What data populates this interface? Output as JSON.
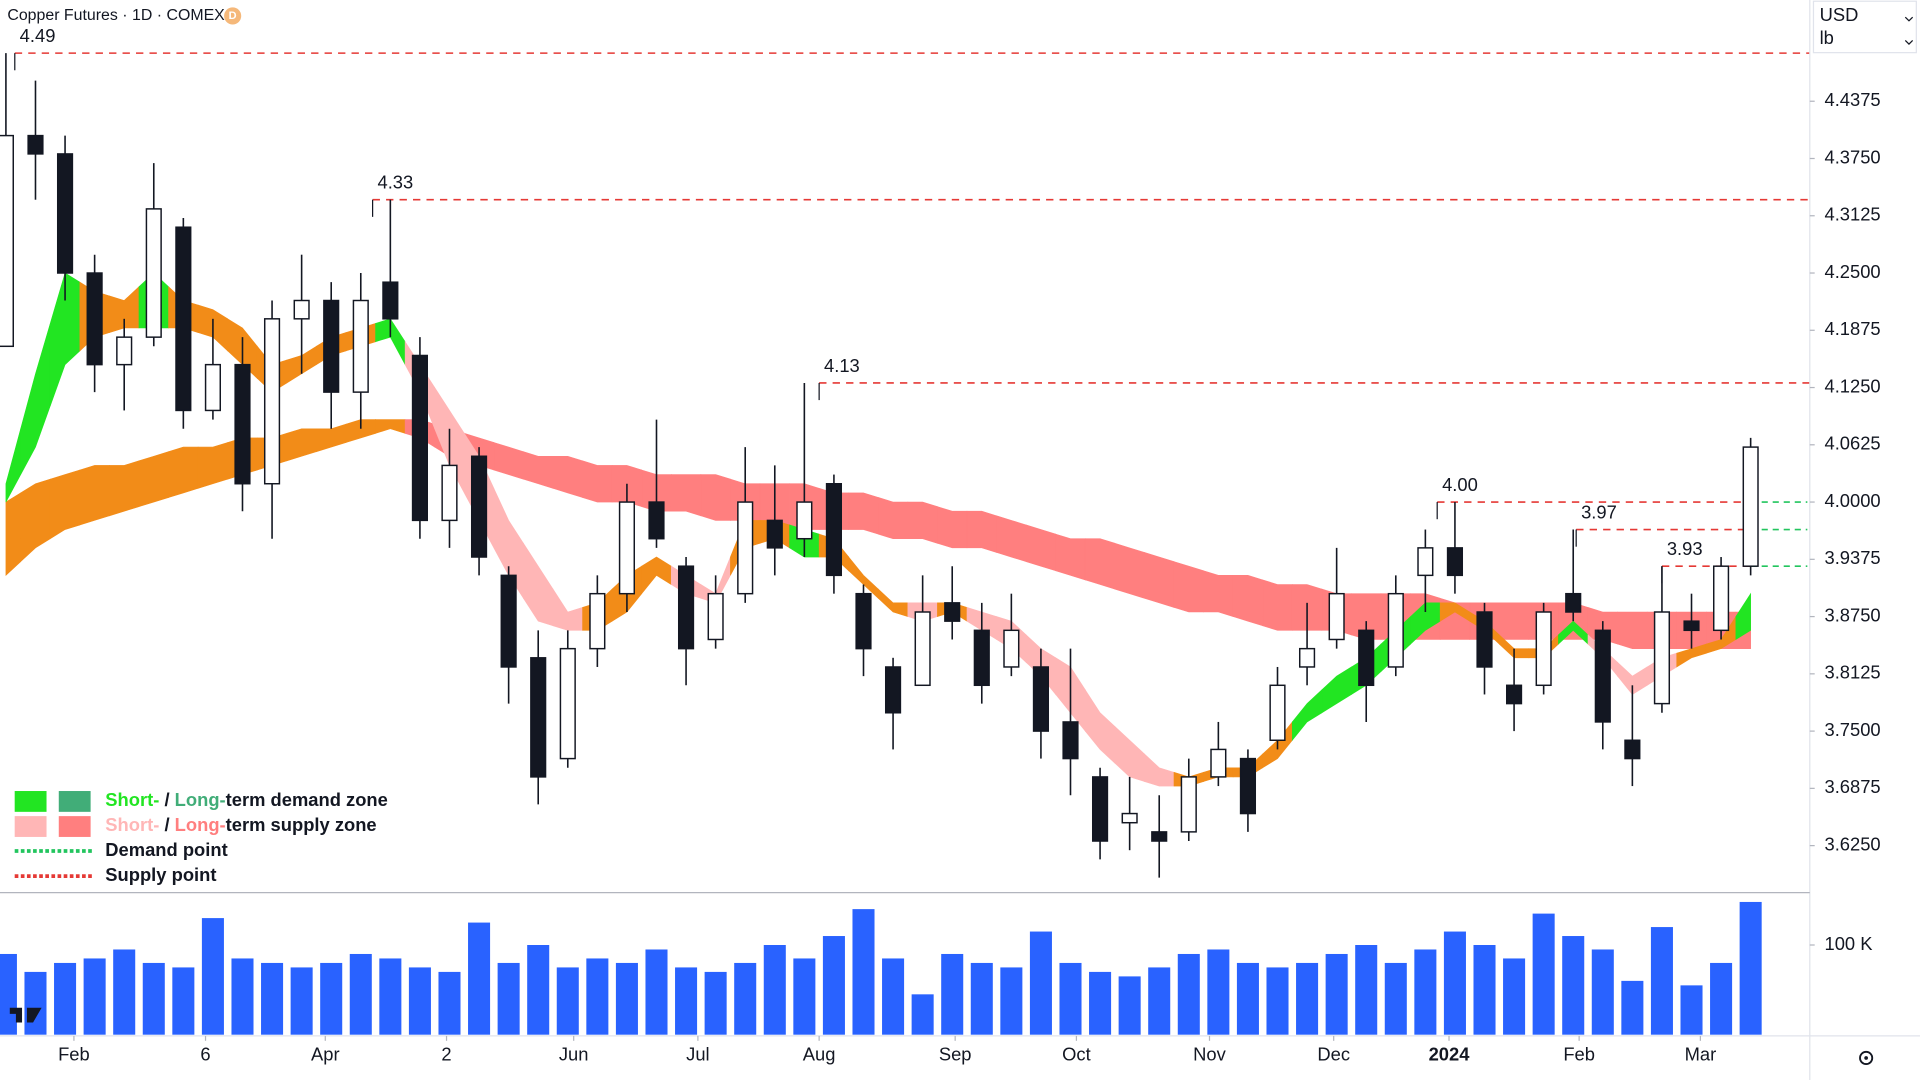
{
  "chart_data": {
    "type": "candlestick",
    "title": "Copper Futures · 1D · COMEX",
    "badge": "D",
    "currency": "USD",
    "unit": "lb",
    "xlim": [
      -0.2,
      61
    ],
    "xticks": [
      {
        "value": 2.3,
        "label": "Feb"
      },
      {
        "value": 6.75,
        "label": "6"
      },
      {
        "value": 10.8,
        "label": "Apr"
      },
      {
        "value": 14.9,
        "label": "2"
      },
      {
        "value": 19.2,
        "label": "Jun"
      },
      {
        "value": 23.4,
        "label": "Jul"
      },
      {
        "value": 27.5,
        "label": "Aug"
      },
      {
        "value": 32.1,
        "label": "Sep"
      },
      {
        "value": 36.2,
        "label": "Oct"
      },
      {
        "value": 40.7,
        "label": "Nov"
      },
      {
        "value": 44.9,
        "label": "Dec"
      },
      {
        "value": 48.8,
        "label": "2024"
      },
      {
        "value": 53.2,
        "label": "Feb"
      },
      {
        "value": 57.3,
        "label": "Mar"
      }
    ],
    "ylim": [
      3.575,
      4.548
    ],
    "yticks": [
      {
        "value": 4.4375,
        "label": "4.4375"
      },
      {
        "value": 4.375,
        "label": "4.3750"
      },
      {
        "value": 4.3125,
        "label": "4.3125"
      },
      {
        "value": 4.25,
        "label": "4.2500"
      },
      {
        "value": 4.1875,
        "label": "4.1875"
      },
      {
        "value": 4.125,
        "label": "4.1250"
      },
      {
        "value": 4.0625,
        "label": "4.0625"
      },
      {
        "value": 4,
        "label": "4.0000"
      },
      {
        "value": 3.9375,
        "label": "3.9375"
      },
      {
        "value": 3.875,
        "label": "3.8750"
      },
      {
        "value": 3.8125,
        "label": "3.8125"
      },
      {
        "value": 3.75,
        "label": "3.7500"
      },
      {
        "value": 3.6875,
        "label": "3.6875"
      },
      {
        "value": 3.625,
        "label": "3.6250"
      }
    ],
    "open": [
      4.17,
      4.4,
      4.38,
      4.25,
      4.15,
      4.18,
      4.3,
      4.1,
      4.15,
      4.02,
      4.2,
      4.22,
      4.12,
      4.24,
      4.16,
      3.98,
      4.05,
      3.92,
      3.83,
      3.72,
      3.84,
      3.9,
      4.0,
      3.93,
      3.85,
      3.9,
      3.98,
      3.96,
      4.02,
      3.9,
      3.82,
      3.8,
      3.89,
      3.86,
      3.82,
      3.82,
      3.76,
      3.7,
      3.65,
      3.64,
      3.64,
      3.7,
      3.72,
      3.74,
      3.82,
      3.85,
      3.86,
      3.82,
      3.92,
      3.95,
      3.88,
      3.8,
      3.8,
      3.9,
      3.86,
      3.74,
      3.78,
      3.87,
      3.86,
      3.93
    ],
    "high": [
      4.49,
      4.46,
      4.4,
      4.27,
      4.2,
      4.37,
      4.31,
      4.2,
      4.18,
      4.22,
      4.27,
      4.24,
      4.25,
      4.33,
      4.18,
      4.08,
      4.06,
      3.93,
      3.86,
      3.86,
      3.92,
      4.02,
      4.09,
      3.94,
      3.92,
      4.06,
      4.04,
      4.13,
      4.03,
      3.91,
      3.83,
      3.92,
      3.93,
      3.89,
      3.9,
      3.84,
      3.84,
      3.71,
      3.7,
      3.68,
      3.72,
      3.76,
      3.73,
      3.82,
      3.89,
      3.95,
      3.87,
      3.92,
      3.97,
      4.0,
      3.89,
      3.84,
      3.89,
      3.97,
      3.87,
      3.8,
      3.93,
      3.9,
      3.94,
      4.07
    ],
    "low": [
      4.17,
      4.33,
      4.22,
      4.12,
      4.1,
      4.17,
      4.08,
      4.09,
      3.99,
      3.96,
      4.14,
      4.08,
      4.08,
      4.18,
      3.96,
      3.95,
      3.92,
      3.78,
      3.67,
      3.71,
      3.82,
      3.88,
      3.95,
      3.8,
      3.84,
      3.89,
      3.92,
      3.94,
      3.9,
      3.81,
      3.73,
      3.8,
      3.85,
      3.78,
      3.81,
      3.72,
      3.68,
      3.61,
      3.62,
      3.59,
      3.63,
      3.69,
      3.64,
      3.73,
      3.8,
      3.84,
      3.76,
      3.81,
      3.88,
      3.9,
      3.79,
      3.75,
      3.79,
      3.87,
      3.73,
      3.69,
      3.77,
      3.84,
      3.85,
      3.92
    ],
    "close": [
      4.4,
      4.38,
      4.25,
      4.15,
      4.18,
      4.32,
      4.1,
      4.15,
      4.02,
      4.2,
      4.22,
      4.12,
      4.22,
      4.2,
      3.98,
      4.04,
      3.94,
      3.82,
      3.7,
      3.84,
      3.9,
      4.0,
      3.96,
      3.84,
      3.9,
      4.0,
      3.95,
      4.0,
      3.92,
      3.84,
      3.77,
      3.88,
      3.87,
      3.8,
      3.86,
      3.75,
      3.72,
      3.63,
      3.66,
      3.63,
      3.7,
      3.73,
      3.66,
      3.8,
      3.84,
      3.9,
      3.8,
      3.9,
      3.95,
      3.92,
      3.82,
      3.78,
      3.88,
      3.88,
      3.76,
      3.72,
      3.88,
      3.86,
      3.93,
      4.06
    ],
    "bands": [
      {
        "upper": [
          4.0,
          4.02,
          4.03,
          4.04,
          4.04,
          4.05,
          4.06,
          4.06,
          4.07,
          4.07,
          4.08,
          4.08,
          4.09,
          4.09,
          4.09,
          4.08,
          4.07,
          4.06,
          4.05,
          4.05,
          4.04,
          4.04,
          4.03,
          4.03,
          4.03,
          4.02,
          4.02,
          4.02,
          4.01,
          4.01,
          4.0,
          4.0,
          3.99,
          3.99,
          3.98,
          3.97,
          3.96,
          3.96,
          3.95,
          3.94,
          3.93,
          3.92,
          3.92,
          3.91,
          3.91,
          3.9,
          3.9,
          3.9,
          3.9,
          3.89,
          3.89,
          3.89,
          3.89,
          3.89,
          3.88,
          3.88,
          3.88,
          3.88,
          3.88,
          3.88
        ],
        "lower": [
          3.92,
          3.95,
          3.97,
          3.98,
          3.99,
          4.0,
          4.01,
          4.02,
          4.03,
          4.04,
          4.05,
          4.06,
          4.07,
          4.08,
          4.07,
          4.05,
          4.04,
          4.03,
          4.02,
          4.01,
          4.0,
          4.0,
          3.99,
          3.99,
          3.98,
          3.98,
          3.98,
          3.97,
          3.97,
          3.97,
          3.96,
          3.96,
          3.95,
          3.95,
          3.94,
          3.93,
          3.92,
          3.91,
          3.9,
          3.89,
          3.88,
          3.88,
          3.87,
          3.86,
          3.86,
          3.86,
          3.85,
          3.85,
          3.85,
          3.85,
          3.85,
          3.85,
          3.85,
          3.85,
          3.85,
          3.84,
          3.84,
          3.84,
          3.84,
          3.84
        ],
        "colors": [
          "#f28c18",
          "#f28c18",
          "#f28c18",
          "#f28c18",
          "#f28c18",
          "#f28c18",
          "#f28c18",
          "#f28c18",
          "#f28c18",
          "#f28c18",
          "#f28c18",
          "#f28c18",
          "#f28c18",
          "#f28c18",
          "#ff7f7f",
          "#ff7f7f",
          "#ff7f7f",
          "#ff7f7f",
          "#ff7f7f",
          "#ff7f7f",
          "#ff7f7f",
          "#ff7f7f",
          "#ff7f7f",
          "#ff7f7f",
          "#ff7f7f",
          "#ff7f7f",
          "#ff7f7f",
          "#ff7f7f",
          "#ff7f7f",
          "#ff7f7f",
          "#ff7f7f",
          "#ff7f7f",
          "#ff7f7f",
          "#ff7f7f",
          "#ff7f7f",
          "#ff7f7f",
          "#ff7f7f",
          "#ff7f7f",
          "#ff7f7f",
          "#ff7f7f",
          "#ff7f7f",
          "#ff7f7f",
          "#ff7f7f",
          "#ff7f7f",
          "#ff7f7f",
          "#ff7f7f",
          "#ff7f7f",
          "#ff7f7f",
          "#ff7f7f",
          "#ff7f7f",
          "#ff7f7f",
          "#ff7f7f",
          "#ff7f7f",
          "#ff7f7f",
          "#ff7f7f",
          "#ff7f7f",
          "#ff7f7f",
          "#ff7f7f",
          "#ff7f7f",
          "#ff7f7f"
        ]
      },
      {
        "upper": [
          4.02,
          4.14,
          4.25,
          4.23,
          4.22,
          4.25,
          4.22,
          4.21,
          4.19,
          4.15,
          4.16,
          4.18,
          4.19,
          4.2,
          4.15,
          4.1,
          4.05,
          3.98,
          3.93,
          3.88,
          3.89,
          3.92,
          3.94,
          3.92,
          3.9,
          3.98,
          3.98,
          3.97,
          3.96,
          3.92,
          3.89,
          3.89,
          3.89,
          3.88,
          3.87,
          3.84,
          3.82,
          3.77,
          3.74,
          3.71,
          3.7,
          3.71,
          3.71,
          3.74,
          3.78,
          3.81,
          3.83,
          3.86,
          3.89,
          3.89,
          3.87,
          3.84,
          3.84,
          3.87,
          3.84,
          3.81,
          3.83,
          3.84,
          3.85,
          3.9
        ],
        "lower": [
          4.0,
          4.06,
          4.15,
          4.18,
          4.19,
          4.19,
          4.19,
          4.18,
          4.15,
          4.12,
          4.14,
          4.16,
          4.17,
          4.18,
          4.12,
          4.04,
          3.98,
          3.92,
          3.87,
          3.86,
          3.86,
          3.88,
          3.92,
          3.9,
          3.89,
          3.95,
          3.96,
          3.94,
          3.94,
          3.91,
          3.88,
          3.87,
          3.88,
          3.86,
          3.84,
          3.81,
          3.77,
          3.73,
          3.7,
          3.69,
          3.69,
          3.7,
          3.7,
          3.72,
          3.76,
          3.78,
          3.8,
          3.83,
          3.86,
          3.88,
          3.86,
          3.83,
          3.83,
          3.86,
          3.83,
          3.79,
          3.81,
          3.83,
          3.84,
          3.86
        ],
        "colors": [
          "#22e522",
          "#22e522",
          "#22e522",
          "#f28c18",
          "#f28c18",
          "#22e522",
          "#f28c18",
          "#f28c18",
          "#f28c18",
          "#f28c18",
          "#f28c18",
          "#f28c18",
          "#f28c18",
          "#22e522",
          "#ffb6b6",
          "#ffb6b6",
          "#ffb6b6",
          "#ffb6b6",
          "#ffb6b6",
          "#ffb6b6",
          "#f28c18",
          "#f28c18",
          "#f28c18",
          "#ffb6b6",
          "#ffb6b6",
          "#f28c18",
          "#f28c18",
          "#22e522",
          "#f28c18",
          "#f28c18",
          "#f28c18",
          "#ffb6b6",
          "#f28c18",
          "#ffb6b6",
          "#ffb6b6",
          "#ffb6b6",
          "#ffb6b6",
          "#ffb6b6",
          "#ffb6b6",
          "#ffb6b6",
          "#f28c18",
          "#f28c18",
          "#f28c18",
          "#f28c18",
          "#22e522",
          "#22e522",
          "#22e522",
          "#22e522",
          "#22e522",
          "#f28c18",
          "#f28c18",
          "#f28c18",
          "#f28c18",
          "#22e522",
          "#ffb6b6",
          "#ffb6b6",
          "#ffb6b6",
          "#f28c18",
          "#f28c18",
          "#22e522"
        ]
      }
    ],
    "levels": [
      {
        "label": "4.49",
        "value": 4.49,
        "start": 0.3
      },
      {
        "label": "4.33",
        "value": 4.33,
        "start": 12.4
      },
      {
        "label": "4.13",
        "value": 4.13,
        "start": 27.5
      },
      {
        "label": "4.00",
        "value": 4.0,
        "start": 48.4
      },
      {
        "label": "3.97",
        "value": 3.97,
        "start": 53.1
      },
      {
        "label": "3.93",
        "value": 3.93,
        "start": 56.0
      }
    ],
    "supply_color": "#e53935",
    "demand_color": "#22c55e",
    "volume": {
      "color": "#2962ff",
      "values": [
        90000,
        70000,
        80000,
        85000,
        95000,
        80000,
        75000,
        130000,
        85000,
        80000,
        75000,
        80000,
        90000,
        85000,
        75000,
        70000,
        125000,
        80000,
        100000,
        75000,
        85000,
        80000,
        95000,
        75000,
        70000,
        80000,
        100000,
        85000,
        110000,
        140000,
        85000,
        45000,
        90000,
        80000,
        75000,
        115000,
        80000,
        70000,
        65000,
        75000,
        90000,
        95000,
        80000,
        75000,
        80000,
        90000,
        100000,
        80000,
        95000,
        115000,
        100000,
        85000,
        135000,
        110000,
        95000,
        60000,
        120000,
        55000,
        80000,
        148000
      ]
    },
    "y2lim": [
      0,
      157000
    ],
    "y2ticks": [
      {
        "value": 100000,
        "label": "100 K"
      }
    ],
    "legend": [
      {
        "swatches": [
          "#22e522",
          "#41ad78"
        ],
        "parts": [
          {
            "text": "Short-",
            "color": "#22e522"
          },
          {
            "text": " / "
          },
          {
            "text": "Long-",
            "color": "#41ad78"
          },
          {
            "text": "term demand zone"
          }
        ]
      },
      {
        "swatches": [
          "#ffb6b6",
          "#ff7f7f"
        ],
        "parts": [
          {
            "text": "Short-",
            "color": "#ffb6b6"
          },
          {
            "text": " / "
          },
          {
            "text": "Long-",
            "color": "#ff7f7f"
          },
          {
            "text": "term supply zone"
          }
        ]
      },
      {
        "line": "#22c55e",
        "parts": [
          {
            "text": "Demand point"
          }
        ]
      },
      {
        "line": "#e53935",
        "parts": [
          {
            "text": "Supply point"
          }
        ]
      }
    ]
  }
}
